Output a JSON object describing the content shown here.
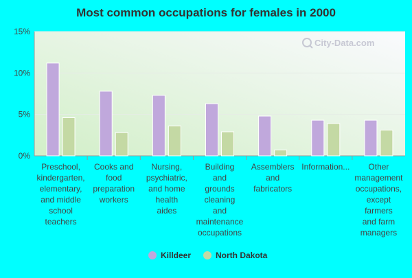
{
  "chart_data": {
    "type": "bar",
    "title": "Most common occupations for females in 2000",
    "xlabel": "",
    "ylabel": "",
    "ylim": [
      0,
      15
    ],
    "yticks": [
      0,
      5,
      10,
      15
    ],
    "ytick_labels": [
      "0%",
      "5%",
      "10%",
      "15%"
    ],
    "grid": true,
    "legend_position": "bottom-center",
    "watermark": "City-Data.com",
    "categories": [
      "Preschool, kindergarten, elementary, and middle school teachers",
      "Cooks and food preparation workers",
      "Nursing, psychiatric, and home health aides",
      "Building and grounds cleaning and maintenance occupations",
      "Assemblers and fabricators",
      "Information...",
      "Other management occupations, except farmers and farm managers"
    ],
    "category_lines": [
      [
        "Preschool,",
        "kindergarten,",
        "elementary,",
        "and middle",
        "school",
        "teachers"
      ],
      [
        "Cooks and",
        "food",
        "preparation",
        "workers"
      ],
      [
        "Nursing,",
        "psychiatric,",
        "and home",
        "health",
        "aides"
      ],
      [
        "Building",
        "and",
        "grounds",
        "cleaning",
        "and",
        "maintenance",
        "occupations"
      ],
      [
        "Assemblers",
        "and",
        "fabricators"
      ],
      [
        "Information..."
      ],
      [
        "Other",
        "management",
        "occupations,",
        "except",
        "farmers",
        "and farm",
        "managers"
      ]
    ],
    "series": [
      {
        "name": "Killdeer",
        "color": "#c0a8dc",
        "values": [
          11.2,
          7.8,
          7.3,
          6.3,
          4.8,
          4.3,
          4.3
        ]
      },
      {
        "name": "North Dakota",
        "color": "#c4d9a4",
        "values": [
          4.6,
          2.8,
          3.6,
          2.9,
          0.7,
          3.9,
          3.1
        ]
      }
    ]
  },
  "colors": {
    "background": "#00ffff",
    "plot_gradient_top": "#f8f8fc",
    "plot_gradient_bottom": "#d6f0cc",
    "axis": "#999999",
    "text": "#333333"
  }
}
